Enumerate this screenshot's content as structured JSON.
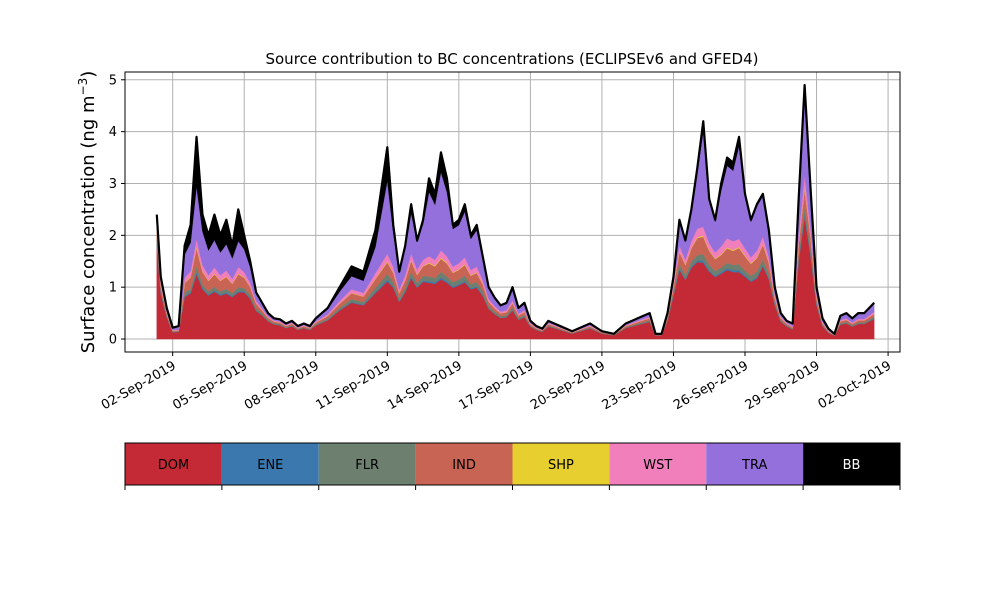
{
  "chart_data": {
    "type": "area",
    "title": "Source contribution to BC concentrations (ECLIPSEv6 and GFED4)",
    "ylabel": "Surface concentration (ng m",
    "ylabel_sup": "−3",
    "ylabel_close": ")",
    "xlabel": "",
    "stacked": true,
    "grid": true,
    "ylim": [
      -0.25,
      5.15
    ],
    "yticks": [
      0,
      1,
      2,
      3,
      4,
      5
    ],
    "x_start": "2019-09-01 08:00",
    "x_end": "2019-10-01 10:00",
    "xlim": [
      "2019-08-31 00:00",
      "2019-10-02 12:00"
    ],
    "xticks": [
      "02-Sep-2019",
      "05-Sep-2019",
      "08-Sep-2019",
      "11-Sep-2019",
      "14-Sep-2019",
      "17-Sep-2019",
      "20-Sep-2019",
      "23-Sep-2019",
      "26-Sep-2019",
      "29-Sep-2019",
      "02-Oct-2019"
    ],
    "total": {
      "x": [
        "2019-09-01 08:00",
        "2019-09-01 12:00",
        "2019-09-01 18:00",
        "2019-09-02 00:00",
        "2019-09-02 06:00",
        "2019-09-02 12:00",
        "2019-09-02 18:00",
        "2019-09-03 00:00",
        "2019-09-03 06:00",
        "2019-09-03 12:00",
        "2019-09-03 18:00",
        "2019-09-04 00:00",
        "2019-09-04 06:00",
        "2019-09-04 12:00",
        "2019-09-04 18:00",
        "2019-09-05 00:00",
        "2019-09-05 06:00",
        "2019-09-05 12:00",
        "2019-09-05 18:00",
        "2019-09-06 00:00",
        "2019-09-06 06:00",
        "2019-09-06 12:00",
        "2019-09-06 18:00",
        "2019-09-07 00:00",
        "2019-09-07 06:00",
        "2019-09-07 12:00",
        "2019-09-07 18:00",
        "2019-09-08 00:00",
        "2019-09-08 12:00",
        "2019-09-09 00:00",
        "2019-09-09 12:00",
        "2019-09-10 00:00",
        "2019-09-10 12:00",
        "2019-09-11 00:00",
        "2019-09-11 06:00",
        "2019-09-11 12:00",
        "2019-09-11 18:00",
        "2019-09-12 00:00",
        "2019-09-12 06:00",
        "2019-09-12 12:00",
        "2019-09-12 18:00",
        "2019-09-13 00:00",
        "2019-09-13 06:00",
        "2019-09-13 12:00",
        "2019-09-13 18:00",
        "2019-09-14 00:00",
        "2019-09-14 06:00",
        "2019-09-14 12:00",
        "2019-09-14 18:00",
        "2019-09-15 00:00",
        "2019-09-15 06:00",
        "2019-09-15 12:00",
        "2019-09-15 18:00",
        "2019-09-16 00:00",
        "2019-09-16 06:00",
        "2019-09-16 12:00",
        "2019-09-16 18:00",
        "2019-09-17 00:00",
        "2019-09-17 06:00",
        "2019-09-17 12:00",
        "2019-09-17 18:00",
        "2019-09-18 00:00",
        "2019-09-18 06:00",
        "2019-09-18 12:00",
        "2019-09-18 18:00",
        "2019-09-19 00:00",
        "2019-09-19 12:00",
        "2019-09-20 00:00",
        "2019-09-20 12:00",
        "2019-09-21 00:00",
        "2019-09-21 12:00",
        "2019-09-22 00:00",
        "2019-09-22 06:00",
        "2019-09-22 12:00",
        "2019-09-22 18:00",
        "2019-09-23 00:00",
        "2019-09-23 06:00",
        "2019-09-23 12:00",
        "2019-09-23 18:00",
        "2019-09-24 00:00",
        "2019-09-24 06:00",
        "2019-09-24 12:00",
        "2019-09-24 18:00",
        "2019-09-25 00:00",
        "2019-09-25 06:00",
        "2019-09-25 12:00",
        "2019-09-25 18:00",
        "2019-09-26 00:00",
        "2019-09-26 06:00",
        "2019-09-26 12:00",
        "2019-09-26 18:00",
        "2019-09-27 00:00",
        "2019-09-27 06:00",
        "2019-09-27 12:00",
        "2019-09-27 18:00",
        "2019-09-28 00:00",
        "2019-09-28 06:00",
        "2019-09-28 12:00",
        "2019-09-28 18:00",
        "2019-09-29 00:00",
        "2019-09-29 06:00",
        "2019-09-29 12:00",
        "2019-09-29 18:00",
        "2019-09-30 00:00",
        "2019-09-30 06:00",
        "2019-09-30 12:00",
        "2019-09-30 18:00",
        "2019-10-01 00:00",
        "2019-10-01 10:00"
      ],
      "y": [
        2.4,
        1.2,
        0.6,
        0.22,
        0.25,
        1.8,
        2.2,
        3.9,
        2.4,
        2.0,
        2.4,
        2.0,
        2.3,
        1.8,
        2.5,
        2.0,
        1.5,
        0.9,
        0.7,
        0.5,
        0.4,
        0.38,
        0.3,
        0.35,
        0.25,
        0.3,
        0.25,
        0.4,
        0.6,
        1.0,
        1.4,
        1.3,
        2.1,
        3.7,
        2.2,
        1.3,
        1.8,
        2.6,
        1.9,
        2.3,
        3.1,
        2.8,
        3.6,
        3.1,
        2.2,
        2.3,
        2.6,
        2.0,
        2.2,
        1.6,
        1.0,
        0.8,
        0.65,
        0.7,
        1.0,
        0.6,
        0.7,
        0.35,
        0.25,
        0.2,
        0.35,
        0.3,
        0.25,
        0.2,
        0.15,
        0.2,
        0.3,
        0.15,
        0.1,
        0.3,
        0.4,
        0.5,
        0.1,
        0.1,
        0.5,
        1.2,
        2.3,
        1.9,
        2.5,
        3.3,
        4.2,
        2.7,
        2.3,
        3.0,
        3.5,
        3.4,
        3.9,
        2.8,
        2.3,
        2.6,
        2.8,
        2.1,
        1.0,
        0.5,
        0.35,
        0.3,
        2.7,
        4.9,
        2.9,
        1.0,
        0.4,
        0.2,
        0.1,
        0.45,
        0.5,
        0.4,
        0.5,
        0.5,
        0.7
      ]
    },
    "fractions": {
      "DOM": [
        0.75,
        0.72,
        0.7,
        0.6,
        0.55,
        0.45,
        0.4,
        0.32,
        0.4,
        0.42,
        0.38,
        0.42,
        0.38,
        0.45,
        0.36,
        0.45,
        0.52,
        0.6,
        0.65,
        0.68,
        0.7,
        0.7,
        0.7,
        0.7,
        0.7,
        0.7,
        0.7,
        0.65,
        0.6,
        0.55,
        0.5,
        0.5,
        0.42,
        0.3,
        0.45,
        0.55,
        0.5,
        0.45,
        0.52,
        0.48,
        0.35,
        0.38,
        0.32,
        0.35,
        0.45,
        0.45,
        0.42,
        0.48,
        0.45,
        0.52,
        0.58,
        0.6,
        0.62,
        0.6,
        0.55,
        0.62,
        0.6,
        0.68,
        0.7,
        0.7,
        0.68,
        0.7,
        0.7,
        0.7,
        0.7,
        0.7,
        0.68,
        0.7,
        0.72,
        0.7,
        0.68,
        0.66,
        0.7,
        0.72,
        0.7,
        0.7,
        0.58,
        0.6,
        0.55,
        0.45,
        0.35,
        0.48,
        0.52,
        0.42,
        0.38,
        0.38,
        0.33,
        0.43,
        0.48,
        0.45,
        0.5,
        0.55,
        0.65,
        0.66,
        0.7,
        0.62,
        0.55,
        0.48,
        0.55,
        0.65,
        0.62,
        0.6,
        0.65,
        0.62,
        0.6,
        0.6,
        0.58,
        0.58,
        0.55
      ],
      "ENE": [
        0.01,
        0.01,
        0.01,
        0.01,
        0.01,
        0.01,
        0.01,
        0.01,
        0.01,
        0.01,
        0.01,
        0.01,
        0.01,
        0.01,
        0.01,
        0.01,
        0.01,
        0.01,
        0.01,
        0.01,
        0.01,
        0.01,
        0.01,
        0.01,
        0.01,
        0.01,
        0.01,
        0.01,
        0.01,
        0.01,
        0.01,
        0.01,
        0.01,
        0.01,
        0.01,
        0.01,
        0.01,
        0.01,
        0.01,
        0.01,
        0.01,
        0.01,
        0.01,
        0.01,
        0.01,
        0.01,
        0.01,
        0.01,
        0.01,
        0.01,
        0.01,
        0.01,
        0.01,
        0.01,
        0.01,
        0.01,
        0.01,
        0.01,
        0.01,
        0.01,
        0.01,
        0.01,
        0.01,
        0.01,
        0.01,
        0.01,
        0.01,
        0.01,
        0.01,
        0.01,
        0.01,
        0.01,
        0.01,
        0.01,
        0.01,
        0.01,
        0.01,
        0.01,
        0.01,
        0.01,
        0.01,
        0.01,
        0.01,
        0.01,
        0.01,
        0.01,
        0.01,
        0.01,
        0.01,
        0.01,
        0.01,
        0.01,
        0.01,
        0.01,
        0.01,
        0.01,
        0.01,
        0.01,
        0.01,
        0.01,
        0.01,
        0.01,
        0.01,
        0.01,
        0.01,
        0.01,
        0.01,
        0.01,
        0.01
      ],
      "FLR": [
        0.04,
        0.04,
        0.04,
        0.04,
        0.04,
        0.04,
        0.03,
        0.03,
        0.03,
        0.03,
        0.03,
        0.03,
        0.03,
        0.03,
        0.03,
        0.03,
        0.04,
        0.05,
        0.05,
        0.05,
        0.05,
        0.05,
        0.05,
        0.05,
        0.05,
        0.05,
        0.05,
        0.05,
        0.05,
        0.04,
        0.04,
        0.04,
        0.04,
        0.03,
        0.04,
        0.04,
        0.04,
        0.04,
        0.04,
        0.04,
        0.03,
        0.03,
        0.03,
        0.03,
        0.04,
        0.04,
        0.04,
        0.04,
        0.04,
        0.05,
        0.05,
        0.05,
        0.05,
        0.05,
        0.05,
        0.05,
        0.05,
        0.05,
        0.05,
        0.05,
        0.05,
        0.05,
        0.05,
        0.05,
        0.05,
        0.05,
        0.05,
        0.05,
        0.05,
        0.05,
        0.05,
        0.05,
        0.05,
        0.05,
        0.05,
        0.05,
        0.04,
        0.04,
        0.04,
        0.03,
        0.03,
        0.04,
        0.04,
        0.03,
        0.03,
        0.03,
        0.03,
        0.03,
        0.04,
        0.04,
        0.04,
        0.04,
        0.05,
        0.05,
        0.05,
        0.04,
        0.04,
        0.03,
        0.04,
        0.05,
        0.05,
        0.05,
        0.05,
        0.05,
        0.05,
        0.05,
        0.05,
        0.05,
        0.05
      ],
      "IND": [
        0.08,
        0.08,
        0.08,
        0.08,
        0.08,
        0.1,
        0.1,
        0.09,
        0.1,
        0.1,
        0.1,
        0.1,
        0.1,
        0.1,
        0.1,
        0.1,
        0.1,
        0.1,
        0.08,
        0.08,
        0.08,
        0.08,
        0.08,
        0.08,
        0.08,
        0.08,
        0.08,
        0.08,
        0.08,
        0.08,
        0.08,
        0.08,
        0.08,
        0.06,
        0.08,
        0.08,
        0.08,
        0.08,
        0.08,
        0.08,
        0.08,
        0.08,
        0.07,
        0.08,
        0.08,
        0.08,
        0.08,
        0.08,
        0.08,
        0.08,
        0.08,
        0.08,
        0.08,
        0.08,
        0.08,
        0.08,
        0.08,
        0.08,
        0.08,
        0.08,
        0.08,
        0.08,
        0.08,
        0.08,
        0.08,
        0.08,
        0.08,
        0.08,
        0.08,
        0.08,
        0.08,
        0.08,
        0.08,
        0.08,
        0.08,
        0.08,
        0.1,
        0.1,
        0.1,
        0.1,
        0.08,
        0.1,
        0.1,
        0.08,
        0.08,
        0.08,
        0.08,
        0.1,
        0.1,
        0.1,
        0.1,
        0.1,
        0.08,
        0.08,
        0.08,
        0.08,
        0.08,
        0.07,
        0.08,
        0.08,
        0.08,
        0.08,
        0.08,
        0.08,
        0.08,
        0.08,
        0.08,
        0.08,
        0.08
      ],
      "SHP": [
        0.005,
        0.005,
        0.005,
        0.005,
        0.005,
        0.005,
        0.005,
        0.005,
        0.005,
        0.005,
        0.005,
        0.005,
        0.005,
        0.005,
        0.005,
        0.005,
        0.005,
        0.005,
        0.005,
        0.005,
        0.005,
        0.005,
        0.005,
        0.005,
        0.005,
        0.005,
        0.005,
        0.005,
        0.005,
        0.005,
        0.005,
        0.005,
        0.005,
        0.005,
        0.005,
        0.005,
        0.005,
        0.005,
        0.005,
        0.005,
        0.005,
        0.005,
        0.005,
        0.005,
        0.005,
        0.005,
        0.005,
        0.005,
        0.005,
        0.005,
        0.005,
        0.005,
        0.005,
        0.005,
        0.005,
        0.005,
        0.005,
        0.005,
        0.005,
        0.005,
        0.005,
        0.005,
        0.005,
        0.005,
        0.005,
        0.005,
        0.005,
        0.005,
        0.005,
        0.005,
        0.005,
        0.005,
        0.005,
        0.005,
        0.005,
        0.005,
        0.005,
        0.005,
        0.005,
        0.005,
        0.005,
        0.005,
        0.005,
        0.005,
        0.005,
        0.005,
        0.005,
        0.005,
        0.005,
        0.005,
        0.005,
        0.005,
        0.005,
        0.005,
        0.005,
        0.005,
        0.005,
        0.005,
        0.005,
        0.005,
        0.005,
        0.005,
        0.005,
        0.005,
        0.005,
        0.005,
        0.005,
        0.005,
        0.005
      ],
      "WST": [
        0.05,
        0.05,
        0.05,
        0.05,
        0.05,
        0.05,
        0.05,
        0.04,
        0.05,
        0.05,
        0.05,
        0.05,
        0.05,
        0.05,
        0.05,
        0.05,
        0.05,
        0.05,
        0.05,
        0.05,
        0.05,
        0.05,
        0.05,
        0.05,
        0.05,
        0.05,
        0.05,
        0.05,
        0.05,
        0.05,
        0.05,
        0.05,
        0.05,
        0.04,
        0.05,
        0.05,
        0.05,
        0.05,
        0.05,
        0.05,
        0.04,
        0.04,
        0.04,
        0.04,
        0.05,
        0.05,
        0.05,
        0.05,
        0.05,
        0.05,
        0.05,
        0.05,
        0.05,
        0.05,
        0.05,
        0.05,
        0.05,
        0.05,
        0.05,
        0.05,
        0.05,
        0.05,
        0.05,
        0.05,
        0.05,
        0.05,
        0.05,
        0.05,
        0.05,
        0.05,
        0.05,
        0.05,
        0.05,
        0.05,
        0.05,
        0.05,
        0.05,
        0.05,
        0.05,
        0.05,
        0.04,
        0.05,
        0.05,
        0.05,
        0.05,
        0.05,
        0.04,
        0.05,
        0.05,
        0.05,
        0.05,
        0.05,
        0.05,
        0.05,
        0.05,
        0.05,
        0.06,
        0.05,
        0.05,
        0.05,
        0.05,
        0.05,
        0.05,
        0.05,
        0.05,
        0.05,
        0.05,
        0.05,
        0.05
      ],
      "TRA": [
        0.05,
        0.09,
        0.1,
        0.18,
        0.22,
        0.25,
        0.25,
        0.26,
        0.27,
        0.24,
        0.22,
        0.22,
        0.22,
        0.22,
        0.2,
        0.22,
        0.2,
        0.15,
        0.14,
        0.12,
        0.1,
        0.1,
        0.1,
        0.1,
        0.1,
        0.1,
        0.1,
        0.12,
        0.16,
        0.18,
        0.18,
        0.18,
        0.24,
        0.38,
        0.3,
        0.25,
        0.28,
        0.3,
        0.28,
        0.3,
        0.4,
        0.38,
        0.42,
        0.4,
        0.33,
        0.32,
        0.34,
        0.3,
        0.32,
        0.25,
        0.2,
        0.18,
        0.17,
        0.17,
        0.2,
        0.17,
        0.18,
        0.12,
        0.11,
        0.11,
        0.12,
        0.11,
        0.11,
        0.11,
        0.11,
        0.11,
        0.12,
        0.11,
        0.1,
        0.11,
        0.12,
        0.13,
        0.11,
        0.1,
        0.11,
        0.11,
        0.2,
        0.2,
        0.25,
        0.33,
        0.44,
        0.3,
        0.26,
        0.36,
        0.4,
        0.4,
        0.46,
        0.36,
        0.3,
        0.33,
        0.28,
        0.23,
        0.14,
        0.13,
        0.11,
        0.19,
        0.23,
        0.33,
        0.23,
        0.14,
        0.16,
        0.18,
        0.13,
        0.16,
        0.18,
        0.18,
        0.2,
        0.2,
        0.23
      ]
    },
    "series": [
      {
        "name": "DOM",
        "color": "#c32a36"
      },
      {
        "name": "ENE",
        "color": "#3a78ae"
      },
      {
        "name": "FLR",
        "color": "#6d8070"
      },
      {
        "name": "IND",
        "color": "#c86454"
      },
      {
        "name": "SHP",
        "color": "#e6cf2e"
      },
      {
        "name": "WST",
        "color": "#f07fbc"
      },
      {
        "name": "TRA",
        "color": "#9370db"
      },
      {
        "name": "BB",
        "color": "#000000"
      }
    ],
    "legend_placement": "bottom",
    "total_line_color": "#000000",
    "grid_color": "#b0b0b0"
  }
}
